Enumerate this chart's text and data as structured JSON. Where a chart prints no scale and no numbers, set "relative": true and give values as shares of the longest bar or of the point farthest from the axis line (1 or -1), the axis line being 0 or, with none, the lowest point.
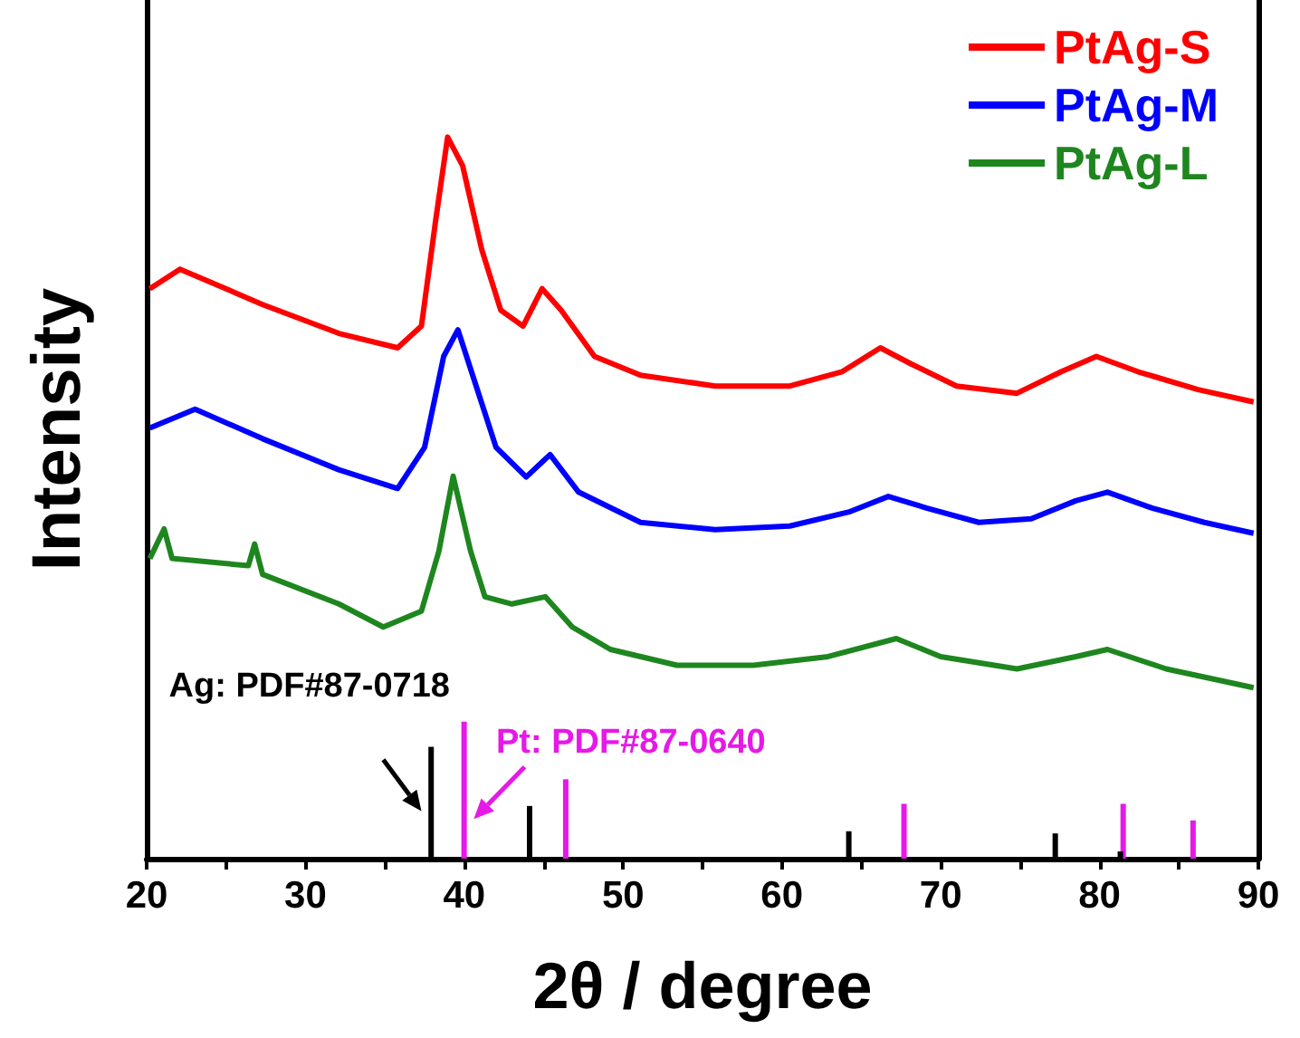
{
  "chart_data": {
    "type": "line",
    "relative": true,
    "xlabel": "2θ / degree",
    "ylabel": "Intensity",
    "legend": "top right",
    "xlim": [
      20,
      90
    ],
    "xticks": [
      20,
      {
        "value": 25,
        "label": null
      },
      30,
      {
        "value": 35,
        "label": null
      },
      40,
      {
        "value": 45,
        "label": null
      },
      50,
      {
        "value": 55,
        "label": null
      },
      60,
      {
        "value": 65,
        "label": null
      },
      70,
      {
        "value": 75,
        "label": null
      },
      80,
      {
        "value": 85,
        "label": null
      },
      90
    ],
    "series": [
      {
        "name": "PtAg-S",
        "color": "#ff0000",
        "x": [
          20.2,
          22.1,
          27.3,
          32.1,
          35.8,
          37.3,
          38.2,
          38.95,
          39.9,
          41.1,
          42.3,
          43.7,
          44.9,
          46.1,
          48.2,
          51.1,
          55.8,
          60.5,
          63.8,
          66.2,
          68.1,
          71.0,
          74.8,
          77.6,
          79.8,
          82.4,
          86.2,
          89.7
        ],
        "values": [
          0.79,
          0.817,
          0.768,
          0.728,
          0.708,
          0.738,
          0.885,
          1.0,
          0.96,
          0.844,
          0.76,
          0.738,
          0.79,
          0.76,
          0.696,
          0.67,
          0.655,
          0.655,
          0.675,
          0.708,
          0.686,
          0.655,
          0.645,
          0.675,
          0.696,
          0.675,
          0.65,
          0.633
        ]
      },
      {
        "name": "PtAg-M",
        "color": "#0000ff",
        "x": [
          20.2,
          23.05,
          27.3,
          32.1,
          35.8,
          37.5,
          38.7,
          39.6,
          40.6,
          42.0,
          43.9,
          45.4,
          47.2,
          51.1,
          55.8,
          60.5,
          64.3,
          66.7,
          69.1,
          72.4,
          75.7,
          78.5,
          80.5,
          83.3,
          86.6,
          89.7
        ],
        "values": [
          0.597,
          0.623,
          0.582,
          0.539,
          0.513,
          0.57,
          0.696,
          0.733,
          0.665,
          0.57,
          0.529,
          0.56,
          0.508,
          0.466,
          0.456,
          0.461,
          0.481,
          0.502,
          0.486,
          0.466,
          0.471,
          0.496,
          0.508,
          0.486,
          0.466,
          0.451
        ]
      },
      {
        "name": "PtAg-L",
        "color": "#1e861e",
        "x": [
          20.2,
          21.1,
          21.6,
          26.4,
          26.8,
          27.3,
          32.1,
          34.9,
          37.3,
          38.4,
          39.3,
          40.4,
          41.3,
          43.0,
          45.1,
          46.8,
          49.2,
          53.4,
          58.2,
          62.9,
          67.2,
          70.0,
          74.8,
          78.5,
          80.5,
          84.2,
          89.7
        ],
        "values": [
          0.416,
          0.457,
          0.416,
          0.406,
          0.436,
          0.394,
          0.353,
          0.321,
          0.343,
          0.426,
          0.53,
          0.426,
          0.363,
          0.353,
          0.363,
          0.321,
          0.29,
          0.268,
          0.268,
          0.28,
          0.305,
          0.28,
          0.263,
          0.28,
          0.29,
          0.263,
          0.237
        ]
      },
      {
        "name": "Ag: PDF#87-0718",
        "color": "#000000",
        "type": "bar",
        "x": [
          38.1,
          44.3,
          64.4,
          77.4,
          81.5
        ],
        "values": [
          0.155,
          0.073,
          0.038,
          0.035,
          0.01
        ]
      },
      {
        "name": "Pt: PDF#87-0640",
        "color": "#e619e6",
        "type": "bar",
        "x": [
          39.8,
          46.2,
          67.5,
          81.3,
          85.7
        ],
        "values": [
          0.19,
          0.11,
          0.076,
          0.076,
          0.053
        ]
      }
    ]
  }
}
